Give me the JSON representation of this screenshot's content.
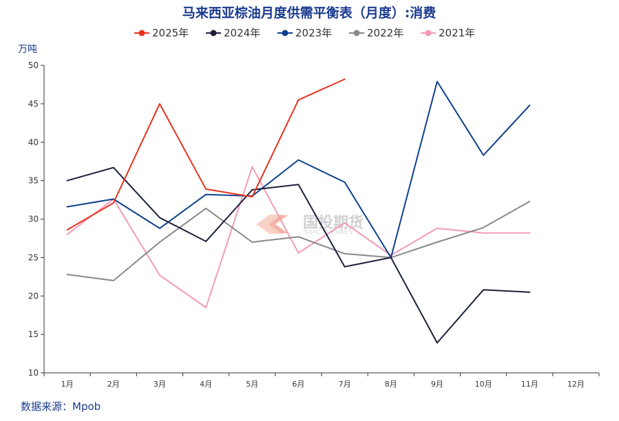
{
  "chart_data": {
    "type": "line",
    "title": "马来西亚棕油月度供需平衡表（月度）:消费",
    "ylabel": "万吨",
    "ylim": [
      10,
      50
    ],
    "yticks": [
      10,
      15,
      20,
      25,
      30,
      35,
      40,
      45,
      50
    ],
    "categories": [
      "1月",
      "2月",
      "3月",
      "4月",
      "5月",
      "6月",
      "7月",
      "8月",
      "9月",
      "10月",
      "11月",
      "12月"
    ],
    "legend_position": "top",
    "grid": false,
    "series": [
      {
        "name": "2025年",
        "color": "#e8321f",
        "values": [
          28.6,
          32.1,
          45.0,
          33.9,
          32.9,
          45.5,
          48.2,
          null,
          null,
          null,
          null,
          null
        ]
      },
      {
        "name": "2024年",
        "color": "#1c1f3a",
        "values": [
          35.0,
          36.7,
          30.2,
          27.1,
          33.8,
          34.5,
          23.8,
          25.0,
          13.9,
          20.8,
          20.5,
          null
        ]
      },
      {
        "name": "2023年",
        "color": "#0d3f8c",
        "values": [
          31.6,
          32.6,
          28.8,
          33.2,
          33.0,
          37.7,
          34.8,
          25.0,
          47.9,
          38.3,
          44.8,
          null
        ]
      },
      {
        "name": "2022年",
        "color": "#888888",
        "values": [
          22.8,
          22.0,
          27.0,
          31.4,
          27.0,
          27.7,
          25.5,
          25.0,
          27.0,
          28.9,
          32.3,
          null
        ]
      },
      {
        "name": "2021年",
        "color": "#f39ab5",
        "values": [
          28.0,
          32.6,
          22.7,
          18.5,
          36.8,
          25.6,
          29.5,
          25.3,
          28.8,
          28.2,
          28.2,
          null
        ]
      }
    ]
  },
  "source_label": "数据来源：Mpob",
  "watermark": {
    "text": "国投期货",
    "sub": "SDIC FUTURES"
  }
}
